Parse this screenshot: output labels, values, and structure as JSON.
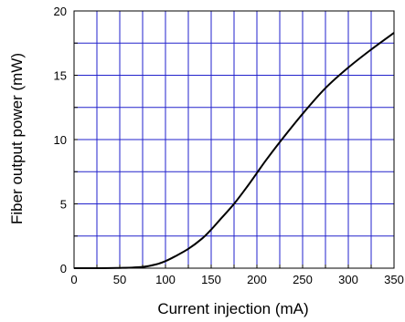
{
  "chart_data": {
    "type": "line",
    "xlabel": "Current injection (mA)",
    "ylabel": "Fiber output power (mW)",
    "xlim": [
      0,
      350
    ],
    "ylim": [
      0,
      20
    ],
    "x_ticks": [
      0,
      50,
      100,
      150,
      200,
      250,
      300,
      350
    ],
    "x_tick_labels": [
      "0",
      "50",
      "100",
      "150",
      "200",
      "250",
      "300",
      "350"
    ],
    "y_ticks": [
      0,
      5,
      10,
      15,
      20
    ],
    "y_tick_labels": [
      "0",
      "5",
      "10",
      "15",
      "20"
    ],
    "x_grid_step": 25,
    "y_grid_step": 2.5,
    "grid": true,
    "grid_color": "#2222cc",
    "line_color": "#000000",
    "series": [
      {
        "x": [
          0,
          25,
          50,
          75,
          90,
          100,
          110,
          125,
          140,
          150,
          160,
          175,
          190,
          200,
          210,
          225,
          250,
          275,
          300,
          325,
          350
        ],
        "y": [
          0,
          0,
          0.02,
          0.1,
          0.3,
          0.55,
          0.9,
          1.5,
          2.3,
          3.0,
          3.8,
          5.0,
          6.4,
          7.4,
          8.4,
          9.8,
          12.0,
          14.0,
          15.6,
          17.0,
          18.3
        ]
      }
    ]
  }
}
